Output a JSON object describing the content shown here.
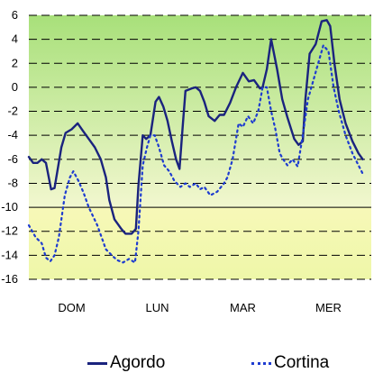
{
  "chart_data": {
    "type": "line",
    "title": "",
    "xlabel": "",
    "ylabel": "",
    "ylim": [
      -16,
      6
    ],
    "yticks": [
      6,
      4,
      2,
      0,
      -2,
      -4,
      -6,
      -8,
      -10,
      -12,
      -14,
      -16
    ],
    "categories": [
      "DOM",
      "LUN",
      "MAR",
      "MER"
    ],
    "x_range": [
      0,
      4
    ],
    "grid": "dashed horizontal",
    "background": "green gradient above -10, yellow below -10",
    "legend_position": "bottom",
    "series": [
      {
        "name": "Agordo",
        "color": "#1a237e",
        "style": "solid",
        "points": [
          [
            0.0,
            -5.8
          ],
          [
            0.05,
            -6.3
          ],
          [
            0.1,
            -6.3
          ],
          [
            0.15,
            -6.0
          ],
          [
            0.2,
            -6.3
          ],
          [
            0.26,
            -8.5
          ],
          [
            0.3,
            -8.4
          ],
          [
            0.38,
            -5.0
          ],
          [
            0.43,
            -3.8
          ],
          [
            0.5,
            -3.5
          ],
          [
            0.57,
            -3.0
          ],
          [
            0.63,
            -3.6
          ],
          [
            0.7,
            -4.3
          ],
          [
            0.77,
            -5.0
          ],
          [
            0.84,
            -6.0
          ],
          [
            0.9,
            -7.5
          ],
          [
            0.94,
            -9.4
          ],
          [
            1.0,
            -11.0
          ],
          [
            1.08,
            -11.8
          ],
          [
            1.13,
            -12.2
          ],
          [
            1.2,
            -12.2
          ],
          [
            1.25,
            -11.8
          ],
          [
            1.28,
            -8.2
          ],
          [
            1.33,
            -4.0
          ],
          [
            1.37,
            -4.3
          ],
          [
            1.42,
            -4.0
          ],
          [
            1.48,
            -1.2
          ],
          [
            1.52,
            -0.8
          ],
          [
            1.57,
            -1.6
          ],
          [
            1.62,
            -2.8
          ],
          [
            1.67,
            -4.5
          ],
          [
            1.72,
            -6.0
          ],
          [
            1.76,
            -6.8
          ],
          [
            1.8,
            -3.0
          ],
          [
            1.83,
            -0.3
          ],
          [
            1.9,
            -0.1
          ],
          [
            1.95,
            0.0
          ],
          [
            2.0,
            -0.3
          ],
          [
            2.05,
            -1.2
          ],
          [
            2.1,
            -2.4
          ],
          [
            2.17,
            -2.8
          ],
          [
            2.23,
            -2.3
          ],
          [
            2.28,
            -2.3
          ],
          [
            2.35,
            -1.3
          ],
          [
            2.42,
            0.0
          ],
          [
            2.5,
            1.2
          ],
          [
            2.57,
            0.5
          ],
          [
            2.63,
            0.6
          ],
          [
            2.7,
            -0.1
          ],
          [
            2.73,
            0.0
          ],
          [
            2.78,
            1.5
          ],
          [
            2.83,
            4.0
          ],
          [
            2.9,
            1.5
          ],
          [
            2.96,
            -1.0
          ],
          [
            3.02,
            -2.5
          ],
          [
            3.1,
            -4.3
          ],
          [
            3.15,
            -4.8
          ],
          [
            3.2,
            -4.5
          ],
          [
            3.23,
            -1.0
          ],
          [
            3.28,
            2.8
          ],
          [
            3.35,
            3.6
          ],
          [
            3.42,
            5.5
          ],
          [
            3.48,
            5.6
          ],
          [
            3.52,
            5.1
          ],
          [
            3.57,
            2.0
          ],
          [
            3.63,
            -1.0
          ],
          [
            3.7,
            -3.0
          ],
          [
            3.78,
            -4.5
          ],
          [
            3.85,
            -5.5
          ],
          [
            3.9,
            -6.0
          ]
        ]
      },
      {
        "name": "Cortina",
        "color": "#1e3cd0",
        "style": "dotted",
        "points": [
          [
            0.0,
            -11.5
          ],
          [
            0.08,
            -12.5
          ],
          [
            0.15,
            -13.0
          ],
          [
            0.2,
            -14.2
          ],
          [
            0.25,
            -14.5
          ],
          [
            0.3,
            -14.0
          ],
          [
            0.35,
            -12.5
          ],
          [
            0.42,
            -9.0
          ],
          [
            0.48,
            -7.5
          ],
          [
            0.52,
            -7.0
          ],
          [
            0.58,
            -7.8
          ],
          [
            0.64,
            -8.8
          ],
          [
            0.7,
            -10.0
          ],
          [
            0.8,
            -11.5
          ],
          [
            0.9,
            -13.5
          ],
          [
            0.97,
            -14.0
          ],
          [
            1.03,
            -14.4
          ],
          [
            1.1,
            -14.6
          ],
          [
            1.17,
            -14.3
          ],
          [
            1.24,
            -14.6
          ],
          [
            1.28,
            -12.0
          ],
          [
            1.33,
            -6.5
          ],
          [
            1.38,
            -5.0
          ],
          [
            1.42,
            -4.0
          ],
          [
            1.47,
            -4.0
          ],
          [
            1.52,
            -5.0
          ],
          [
            1.58,
            -6.5
          ],
          [
            1.64,
            -7.0
          ],
          [
            1.7,
            -7.8
          ],
          [
            1.77,
            -8.3
          ],
          [
            1.83,
            -8.0
          ],
          [
            1.88,
            -8.3
          ],
          [
            1.95,
            -8.0
          ],
          [
            2.0,
            -8.5
          ],
          [
            2.05,
            -8.3
          ],
          [
            2.12,
            -9.0
          ],
          [
            2.2,
            -8.7
          ],
          [
            2.28,
            -8.0
          ],
          [
            2.32,
            -7.5
          ],
          [
            2.38,
            -6.0
          ],
          [
            2.45,
            -3.0
          ],
          [
            2.5,
            -3.3
          ],
          [
            2.56,
            -2.4
          ],
          [
            2.62,
            -3.0
          ],
          [
            2.68,
            -2.0
          ],
          [
            2.73,
            0.0
          ],
          [
            2.78,
            0.0
          ],
          [
            2.83,
            -2.0
          ],
          [
            2.88,
            -3.5
          ],
          [
            2.93,
            -5.5
          ],
          [
            2.97,
            -6.0
          ],
          [
            3.02,
            -6.5
          ],
          [
            3.08,
            -6.0
          ],
          [
            3.14,
            -6.6
          ],
          [
            3.2,
            -4.0
          ],
          [
            3.26,
            -1.0
          ],
          [
            3.32,
            0.5
          ],
          [
            3.38,
            2.0
          ],
          [
            3.44,
            3.5
          ],
          [
            3.5,
            3.0
          ],
          [
            3.56,
            0.0
          ],
          [
            3.62,
            -2.0
          ],
          [
            3.7,
            -4.0
          ],
          [
            3.78,
            -5.5
          ],
          [
            3.85,
            -6.5
          ],
          [
            3.9,
            -7.2
          ]
        ]
      }
    ]
  }
}
